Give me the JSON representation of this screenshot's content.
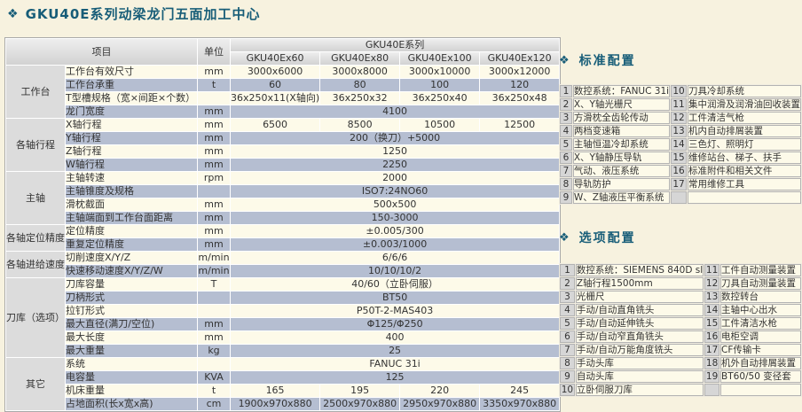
{
  "page": {
    "title": "GKU40E系列动梁龙门五面加工中心"
  },
  "icons": {
    "diamond": "❖"
  },
  "colors": {
    "accent_teal": "#175d78",
    "row_cream": "#fdfae9",
    "row_blue": "#b5bed1",
    "header_gray": "#dcdcdc",
    "page_background": "#f7f2df"
  },
  "spec_table": {
    "header": {
      "item": "项目",
      "unit": "单位",
      "series": "GKU40E系列",
      "models": [
        "GKU40Ex60",
        "GKU40Ex80",
        "GKU40Ex100",
        "GKU40Ex120"
      ]
    },
    "groups": [
      {
        "name": "工作台",
        "rows": [
          {
            "label": "工作台有效尺寸",
            "unit": "mm",
            "values": [
              "3000x6000",
              "3000x8000",
              "3000x10000",
              "3000x12000"
            ]
          },
          {
            "label": "工作台承重",
            "unit": "t",
            "values": [
              "60",
              "80",
              "100",
              "120"
            ]
          },
          {
            "label": "T型槽规格（宽×间距×个数）",
            "unit": "",
            "values": [
              "36x250x11(X轴向)",
              "36x250x32",
              "36x250x40",
              "36x250x48"
            ]
          },
          {
            "label": "龙门宽度",
            "unit": "mm",
            "value": "4100"
          }
        ]
      },
      {
        "name": "各轴行程",
        "rows": [
          {
            "label": "X轴行程",
            "unit": "mm",
            "values": [
              "6500",
              "8500",
              "10500",
              "12500"
            ]
          },
          {
            "label": "Y轴行程",
            "unit": "mm",
            "value": "200（换刀）+5000"
          },
          {
            "label": "Z轴行程",
            "unit": "mm",
            "value": "1250"
          },
          {
            "label": "W轴行程",
            "unit": "mm",
            "value": "2250"
          }
        ]
      },
      {
        "name": "主轴",
        "rows": [
          {
            "label": "主轴转速",
            "unit": "rpm",
            "value": "2000"
          },
          {
            "label": "主轴锥度及规格",
            "unit": "",
            "value": "ISO7:24NO60"
          },
          {
            "label": "滑枕截面",
            "unit": "mm",
            "value": "500x500"
          },
          {
            "label": "主轴端面到工作台面距离",
            "unit": "mm",
            "value": "150-3000"
          }
        ]
      },
      {
        "name": "各轴定位精度",
        "rows": [
          {
            "label": "定位精度",
            "unit": "mm",
            "value": "±0.005/300"
          },
          {
            "label": "重复定位精度",
            "unit": "mm",
            "value": "±0.003/1000"
          }
        ]
      },
      {
        "name": "各轴进给速度",
        "rows": [
          {
            "label": "切削速度X/Y/Z",
            "unit": "m/min",
            "value": "6/6/6"
          },
          {
            "label": "快速移动速度X/Y/Z/W",
            "unit": "m/min",
            "value": "10/10/10/2"
          }
        ]
      },
      {
        "name": "刀库（选项）",
        "rows": [
          {
            "label": "刀库容量",
            "unit": "T",
            "value": "40/60（立卧伺服）"
          },
          {
            "label": "刀柄形式",
            "unit": "",
            "value": "BT50"
          },
          {
            "label": "拉钉形式",
            "unit": "",
            "value": "P50T-2-MAS403"
          },
          {
            "label": "最大直径(满刀/空位)",
            "unit": "mm",
            "value": "Φ125/Φ250"
          },
          {
            "label": "最大长度",
            "unit": "mm",
            "value": "400"
          },
          {
            "label": "最大重量",
            "unit": "kg",
            "value": "25"
          }
        ]
      },
      {
        "name": "其它",
        "rows": [
          {
            "label": "系统",
            "unit": "",
            "value": "FANUC 31i"
          },
          {
            "label": "电容量",
            "unit": "KVA",
            "value": "125"
          },
          {
            "label": "机床重量",
            "unit": "t",
            "values": [
              "165",
              "195",
              "220",
              "245"
            ]
          },
          {
            "label": "占地面积(长x宽x高)",
            "unit": "cm",
            "values": [
              "1900x970x880",
              "2500x970x880",
              "2950x970x880",
              "3350x970x880"
            ]
          }
        ]
      }
    ]
  },
  "standard_config": {
    "title": "标准配置",
    "items_left": [
      {
        "no": "1",
        "text": "数控系统：FANUC 31i"
      },
      {
        "no": "2",
        "text": "X、Y轴光栅尺"
      },
      {
        "no": "3",
        "text": "方滑枕全齿轮传动"
      },
      {
        "no": "4",
        "text": "两档变速箱"
      },
      {
        "no": "5",
        "text": "主轴恒温冷却系统"
      },
      {
        "no": "6",
        "text": "X、Y轴静压导轨"
      },
      {
        "no": "7",
        "text": "气动、液压系统"
      },
      {
        "no": "8",
        "text": "导轨防护"
      },
      {
        "no": "9",
        "text": "W、Z轴液压平衡系统"
      }
    ],
    "items_right": [
      {
        "no": "10",
        "text": "刀具冷却系统"
      },
      {
        "no": "11",
        "text": "集中润滑及润滑油回收装置"
      },
      {
        "no": "12",
        "text": "工件清洁气枪"
      },
      {
        "no": "13",
        "text": "机内自动排屑装置"
      },
      {
        "no": "14",
        "text": "三色灯、照明灯"
      },
      {
        "no": "15",
        "text": "维修站台、梯子、扶手"
      },
      {
        "no": "16",
        "text": "标准附件和相关文件"
      },
      {
        "no": "17",
        "text": "常用维修工具"
      }
    ]
  },
  "optional_config": {
    "title": "选项配置",
    "items_left": [
      {
        "no": "1",
        "text": "数控系统：SIEMENS 840D sl"
      },
      {
        "no": "2",
        "text": "Z轴行程1500mm"
      },
      {
        "no": "3",
        "text": "光栅尺"
      },
      {
        "no": "4",
        "text": "手动/自动直角铣头"
      },
      {
        "no": "5",
        "text": "手动/自动延伸铣头"
      },
      {
        "no": "6",
        "text": "手动/自动窄直角铣头"
      },
      {
        "no": "7",
        "text": "手动/自动万能角度铣头"
      },
      {
        "no": "8",
        "text": "手动头库"
      },
      {
        "no": "9",
        "text": "自动头库"
      },
      {
        "no": "10",
        "text": "立卧伺服刀库"
      }
    ],
    "items_right": [
      {
        "no": "11",
        "text": "工件自动测量装置"
      },
      {
        "no": "12",
        "text": "刀具自动测量装置"
      },
      {
        "no": "13",
        "text": "数控转台"
      },
      {
        "no": "14",
        "text": "主轴中心出水"
      },
      {
        "no": "15",
        "text": "工件清洁水枪"
      },
      {
        "no": "16",
        "text": "电柜空调"
      },
      {
        "no": "17",
        "text": "CF传输卡"
      },
      {
        "no": "18",
        "text": "机外自动排屑装置"
      },
      {
        "no": "19",
        "text": "BT60/50 变径套"
      }
    ]
  }
}
